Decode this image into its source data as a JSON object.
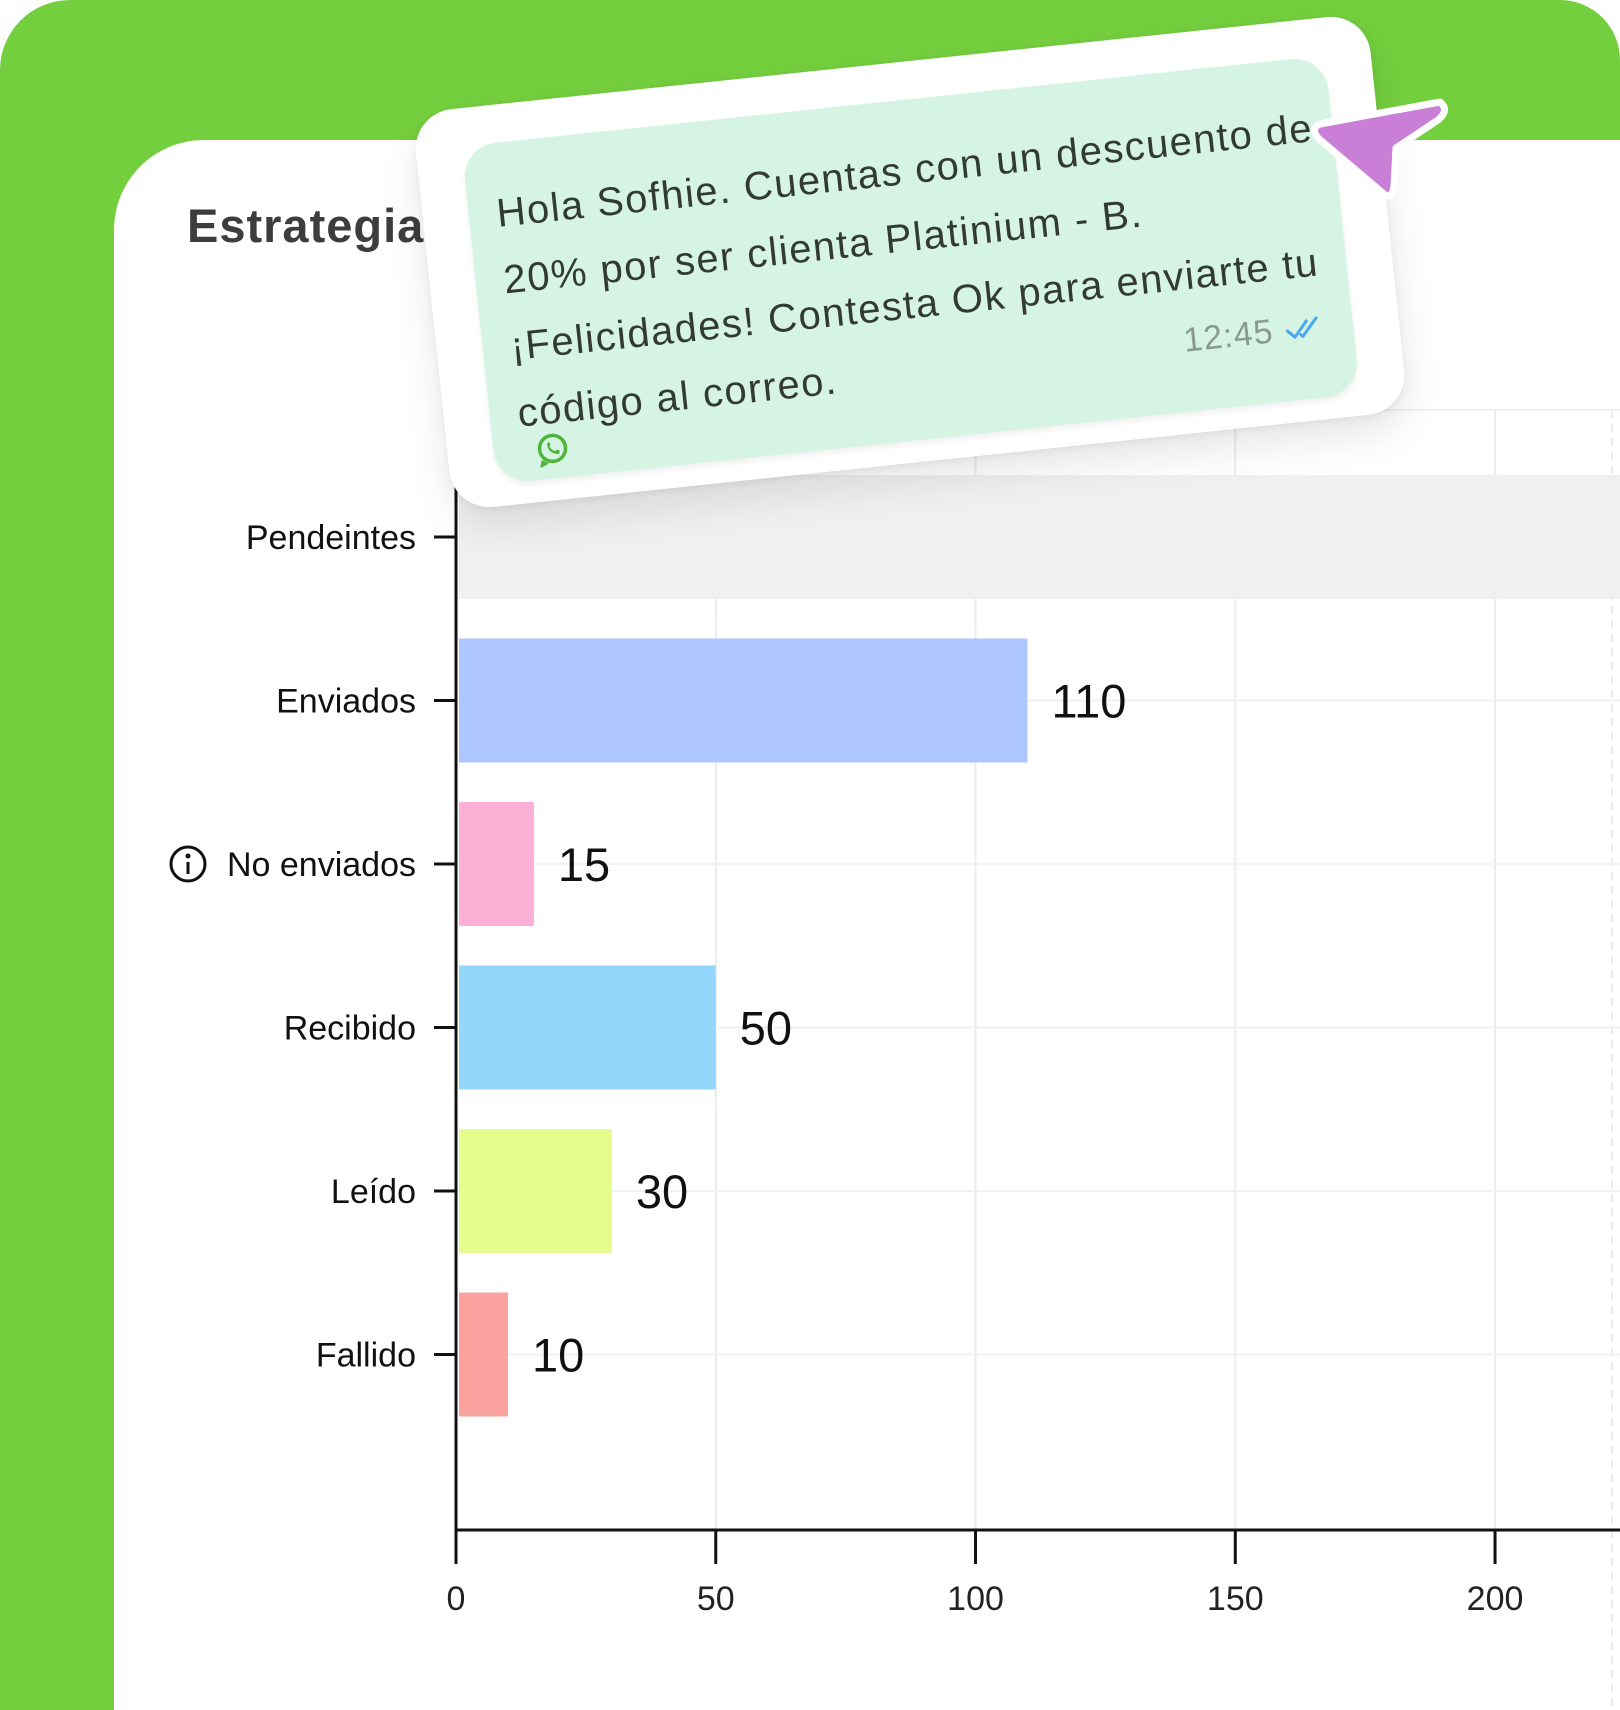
{
  "card": {
    "title": "Estrategia"
  },
  "message": {
    "text": "Hola Sofhie. Cuentas con un descuento de 20% por ser clienta Platinium - B. ¡Felicidades! Contesta Ok para enviarte tu código al correo.",
    "time": "12:45",
    "status_icon": "double-check-icon",
    "app_icon": "whatsapp-icon"
  },
  "pointer": {
    "icon": "cursor-arrow-icon",
    "color": "#c97fd6"
  },
  "chart_data": {
    "type": "bar",
    "orientation": "horizontal",
    "categories": [
      "Pendeintes",
      "Enviados",
      "No enviados",
      "Recibido",
      "Leído",
      "Fallido"
    ],
    "values": [
      null,
      110,
      15,
      50,
      30,
      10
    ],
    "value_labels": [
      "",
      "110",
      "15",
      "50",
      "30",
      "10"
    ],
    "colors": [
      "#f0f0f0",
      "#adc6ff",
      "#fbb0d6",
      "#94d6fc",
      "#e6fd8d",
      "#faa39e"
    ],
    "xticks": [
      0,
      50,
      100,
      150,
      200
    ],
    "xlim": [
      0,
      210
    ],
    "grid": true,
    "info_icon_category": "No enviados",
    "title": "",
    "xlabel": "",
    "ylabel": ""
  }
}
